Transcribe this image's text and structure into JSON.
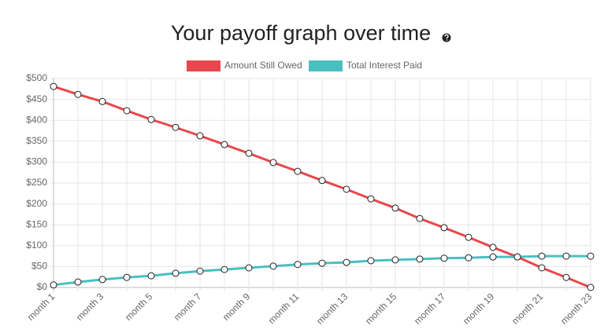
{
  "chart_data": {
    "type": "line",
    "title": "Your payoff graph over time",
    "categories": [
      "month 1",
      null,
      "month 3",
      null,
      "month 5",
      null,
      "month 7",
      null,
      "month 9",
      null,
      "month 11",
      null,
      "month 13",
      null,
      "month 15",
      null,
      "month 17",
      null,
      "month 19",
      null,
      "month 21",
      null,
      "month 23"
    ],
    "series": [
      {
        "name": "Amount Still Owed",
        "color": "#e8474b",
        "values": [
          481,
          462,
          445,
          423,
          402,
          383,
          363,
          342,
          321,
          299,
          278,
          256,
          235,
          212,
          190,
          165,
          143,
          120,
          96,
          73,
          47,
          24,
          0
        ]
      },
      {
        "name": "Total Interest Paid",
        "color": "#4bbfbf",
        "values": [
          6,
          13,
          19,
          24,
          28,
          34,
          39,
          43,
          47,
          51,
          55,
          58,
          60,
          64,
          66,
          68,
          70,
          71,
          73,
          73,
          75,
          75,
          75
        ]
      }
    ],
    "ylim": [
      0,
      500
    ],
    "yticks": [
      {
        "value": 0,
        "label": "$0"
      },
      {
        "value": 50,
        "label": "$50"
      },
      {
        "value": 100,
        "label": "$100"
      },
      {
        "value": 150,
        "label": "$150"
      },
      {
        "value": 200,
        "label": "$200"
      },
      {
        "value": 250,
        "label": "$250"
      },
      {
        "value": 300,
        "label": "$300"
      },
      {
        "value": 350,
        "label": "$350"
      },
      {
        "value": 400,
        "label": "$400"
      },
      {
        "value": 450,
        "label": "$450"
      },
      {
        "value": 500,
        "label": "$500"
      }
    ],
    "grid": true
  }
}
